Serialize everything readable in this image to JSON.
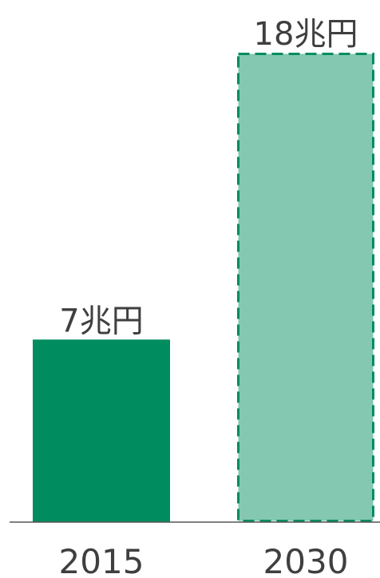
{
  "chart_data": {
    "type": "bar",
    "categories": [
      "2015",
      "2030"
    ],
    "values": [
      7,
      18
    ],
    "data_labels": [
      "7兆円",
      "18兆円"
    ],
    "bar_styles": [
      "solid",
      "dashed-outline"
    ],
    "colors": {
      "solid_fill": "#008c5f",
      "projected_fill": "#84c8b1",
      "projected_outline": "#008c5f",
      "baseline": "#555555",
      "text": "#3f3f3f"
    },
    "ylim": [
      0,
      18
    ],
    "grid": false,
    "legend": "none",
    "title": "",
    "xlabel": "",
    "ylabel": ""
  }
}
